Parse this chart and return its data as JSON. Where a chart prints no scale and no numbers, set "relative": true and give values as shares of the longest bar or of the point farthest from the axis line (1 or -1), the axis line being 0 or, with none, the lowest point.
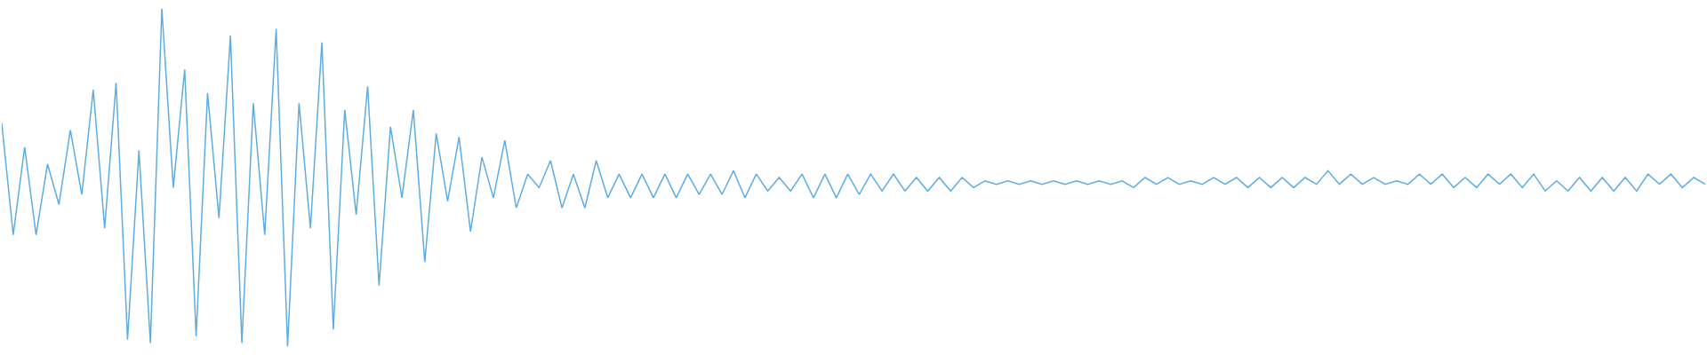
{
  "chart_data": {
    "type": "line",
    "relative": true,
    "categories": [
      null,
      null,
      null,
      null,
      null,
      null,
      null,
      null,
      null,
      null,
      null,
      null,
      null,
      null,
      null,
      null,
      null,
      null,
      null,
      null,
      null,
      null,
      null,
      null,
      null,
      null,
      null,
      null,
      null,
      null,
      null,
      null,
      null,
      null,
      null,
      null,
      null,
      null,
      null,
      null,
      null,
      null,
      null,
      null,
      null,
      null,
      null,
      null,
      null,
      null,
      null,
      null,
      null,
      null,
      null,
      null,
      null,
      null,
      null,
      null,
      null,
      null,
      null,
      null,
      null,
      null,
      null,
      null,
      null,
      null,
      null,
      null,
      null,
      null,
      null,
      null,
      null,
      null,
      null,
      null,
      null,
      null,
      null,
      null,
      null,
      null,
      null,
      null,
      null,
      null,
      null,
      null,
      null,
      null,
      null,
      null,
      null,
      null,
      null,
      null,
      null,
      null,
      null,
      null,
      null,
      null,
      null,
      null,
      null,
      null,
      null,
      null,
      null,
      null,
      null,
      null,
      null,
      null,
      null,
      null,
      null,
      null,
      null,
      null,
      null,
      null,
      null,
      null,
      null,
      null,
      null,
      null,
      null,
      null,
      null,
      null,
      null,
      null,
      null,
      null,
      null,
      null,
      null,
      null,
      null,
      null,
      null,
      null,
      null,
      null
    ],
    "series": [
      {
        "color": "#5dade2",
        "values": [
          0.66,
          0.33,
          0.59,
          0.33,
          0.54,
          0.42,
          0.64,
          0.45,
          0.76,
          0.35,
          0.78,
          0.02,
          0.58,
          0.01,
          1,
          0.47,
          0.82,
          0.03,
          0.75,
          0.38,
          0.92,
          0.01,
          0.72,
          0.33,
          0.94,
          0,
          0.72,
          0.35,
          0.9,
          0.05,
          0.7,
          0.39,
          0.77,
          0.18,
          0.65,
          0.44,
          0.7,
          0.25,
          0.63,
          0.43,
          0.62,
          0.34,
          0.56,
          0.44,
          0.61,
          0.41,
          0.51,
          0.47,
          0.55,
          0.41,
          0.51,
          0.41,
          0.55,
          0.44,
          0.51,
          0.44,
          0.51,
          0.44,
          0.51,
          0.44,
          0.51,
          0.45,
          0.51,
          0.45,
          0.52,
          0.44,
          0.51,
          0.46,
          0.5,
          0.46,
          0.51,
          0.44,
          0.51,
          0.44,
          0.51,
          0.45,
          0.51,
          0.46,
          0.51,
          0.46,
          0.5,
          0.46,
          0.5,
          0.46,
          0.5,
          0.47,
          0.49,
          0.48,
          0.49,
          0.48,
          0.49,
          0.48,
          0.49,
          0.48,
          0.49,
          0.48,
          0.49,
          0.48,
          0.49,
          0.47,
          0.5,
          0.48,
          0.5,
          0.48,
          0.49,
          0.48,
          0.5,
          0.48,
          0.5,
          0.47,
          0.5,
          0.47,
          0.5,
          0.47,
          0.5,
          0.48,
          0.52,
          0.48,
          0.51,
          0.48,
          0.5,
          0.48,
          0.49,
          0.48,
          0.51,
          0.48,
          0.51,
          0.47,
          0.5,
          0.47,
          0.51,
          0.48,
          0.51,
          0.47,
          0.51,
          0.46,
          0.49,
          0.46,
          0.5,
          0.46,
          0.5,
          0.46,
          0.5,
          0.46,
          0.51,
          0.48,
          0.51,
          0.47,
          0.5,
          0.48
        ]
      }
    ]
  }
}
